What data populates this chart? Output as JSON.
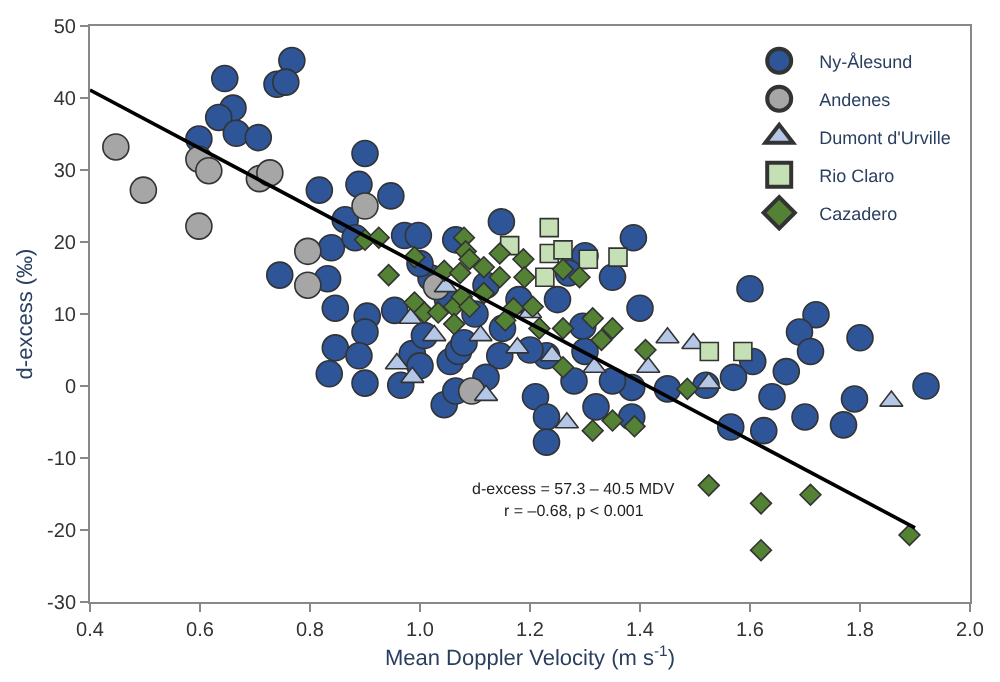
{
  "chart_data": {
    "type": "scatter",
    "xlabel": "Mean Doppler Velocity (m s$^{-1}$)",
    "ylabel": "d-excess (‰)",
    "xlim": [
      0.4,
      2.0
    ],
    "xticks": [
      0.4,
      0.6,
      0.8,
      {
        "value": 1.0,
        "label": "1.0"
      },
      1.2,
      1.4,
      1.6,
      1.8,
      {
        "value": 2.0,
        "label": "2.0"
      }
    ],
    "ylim": [
      -30,
      50
    ],
    "yticks": [
      -30,
      -20,
      -10,
      0,
      10,
      20,
      30,
      40,
      50
    ],
    "legend": "top right",
    "annotations": [
      "d-excess = 57.3 – 40.5 MDV",
      "r = –0.68, p < 0.001"
    ],
    "series": [
      {
        "name": "Ny-Ålesund",
        "color": "#2e5597",
        "marker": "circle",
        "x": [
          0.645,
          0.767,
          0.74,
          0.756,
          0.66,
          0.634,
          0.666,
          0.706,
          0.598,
          0.9,
          0.817,
          0.889,
          0.947,
          0.864,
          0.839,
          0.882,
          0.972,
          0.997,
          1.065,
          0.745,
          0.832,
          0.846,
          0.904,
          0.9,
          0.846,
          0.889,
          0.835,
          0.9,
          0.965,
          0.986,
          1.044,
          1.065,
          1.0,
          1.055,
          0.954,
          1.008,
          1.148,
          1.388,
          1.3,
          1.27,
          1.35,
          1.6,
          1.72,
          1.69,
          1.8,
          1.4,
          1.296,
          1.71,
          1.666,
          1.605,
          1.57,
          1.64,
          1.79,
          1.7,
          1.77,
          1.625,
          1.565,
          1.92,
          1.45,
          1.52,
          1.385,
          1.35,
          1.28,
          1.3,
          1.23,
          1.21,
          1.23,
          1.23,
          1.32,
          1.385,
          1.145,
          1.12,
          1.07,
          1.1,
          1.15,
          1.18,
          1.2,
          1.05,
          1.08,
          1.12,
          1.25,
          1.02,
          1.0
        ],
        "values": [
          42.7,
          45.2,
          41.9,
          42.2,
          38.6,
          37.3,
          35.1,
          34.5,
          34.3,
          32.3,
          27.2,
          28,
          26.4,
          23.1,
          19.2,
          20.6,
          20.9,
          20.9,
          20.3,
          15.4,
          14.9,
          10.8,
          9.7,
          7.5,
          5.3,
          4.2,
          1.7,
          0.4,
          0.1,
          4.5,
          -2.6,
          -0.7,
          2.8,
          3.4,
          10.5,
          7.0,
          22.8,
          20.6,
          18.1,
          15.7,
          15.1,
          13.5,
          9.9,
          7.5,
          6.7,
          10.8,
          8.3,
          4.8,
          2.0,
          3.4,
          1.2,
          -1.5,
          -1.8,
          -4.3,
          -5.4,
          -6.2,
          -5.7,
          0,
          -0.4,
          0.1,
          -0.2,
          0.7,
          0.7,
          4.8,
          4.2,
          -1.5,
          -4.3,
          -7.8,
          -2.9,
          -4.3,
          4.2,
          1.2,
          4.8,
          10,
          8,
          12,
          5,
          12,
          6,
          14,
          12,
          15,
          17
        ]
      },
      {
        "name": "Andenes",
        "color": "#a6a6a6",
        "marker": "circle",
        "x": [
          0.447,
          0.497,
          0.598,
          0.616,
          0.598,
          0.708,
          0.727,
          0.9,
          0.796,
          0.796,
          1.03,
          1.094
        ],
        "values": [
          33.2,
          27.2,
          31.5,
          29.9,
          22.2,
          28.8,
          29.6,
          25.0,
          18.7,
          14.0,
          13.8,
          -0.7
        ]
      },
      {
        "name": "Dumont d'Urville",
        "color": "#b4c7e7",
        "marker": "triangle",
        "x": [
          0.958,
          0.986,
          1.026,
          0.983,
          1.047,
          1.45,
          1.497,
          1.415,
          1.525,
          1.857,
          1.317,
          1.267,
          1.24,
          1.177,
          1.12,
          1.11,
          1.2
        ],
        "values": [
          3.1,
          1.2,
          7.0,
          9.4,
          13.8,
          6.7,
          5.9,
          2.6,
          0.4,
          -2.1,
          2.6,
          -5.1,
          4.2,
          5.3,
          -1.3,
          7.0,
          10.2
        ]
      },
      {
        "name": "Rio Claro",
        "color": "#c5e0b4",
        "marker": "square",
        "x": [
          1.235,
          1.163,
          1.235,
          1.26,
          1.306,
          1.36,
          1.227,
          1.526,
          1.587
        ],
        "values": [
          22.0,
          19.5,
          18.4,
          18.9,
          17.6,
          17.9,
          15.1,
          4.8,
          4.8
        ]
      },
      {
        "name": "Cazadero",
        "color": "#548235",
        "marker": "diamond",
        "x": [
          0.9,
          0.925,
          0.99,
          0.943,
          1.044,
          1.073,
          1.08,
          1.083,
          0.99,
          1.008,
          1.033,
          1.062,
          1.076,
          1.062,
          1.09,
          1.116,
          1.145,
          1.188,
          1.19,
          1.145,
          1.116,
          1.09,
          1.17,
          1.205,
          1.26,
          1.29,
          1.217,
          1.26,
          1.314,
          1.35,
          1.155,
          1.33,
          1.26,
          1.41,
          1.486,
          1.35,
          1.39,
          1.314,
          1.525,
          1.62,
          1.71,
          1.62,
          1.89
        ],
        "values": [
          20.3,
          20.6,
          17.9,
          15.4,
          16.0,
          15.7,
          20.6,
          18.7,
          11.6,
          10.2,
          10.2,
          11.0,
          12.4,
          8.6,
          17.6,
          16.5,
          18.4,
          17.6,
          15.1,
          15.1,
          12.9,
          11.0,
          10.8,
          11.0,
          16.2,
          15.1,
          8.0,
          8.0,
          9.4,
          8.0,
          9.1,
          6.4,
          2.6,
          5.0,
          -0.4,
          -4.8,
          -5.6,
          -6.2,
          -13.8,
          -16.3,
          -15.1,
          -22.8,
          -20.7
        ]
      },
      {
        "type": "line",
        "color": "#000000",
        "marker": "none",
        "x": [
          0.4,
          1.9
        ],
        "values": [
          41.1,
          -19.7
        ]
      }
    ]
  }
}
